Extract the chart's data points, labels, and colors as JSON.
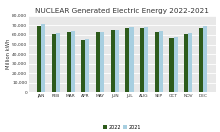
{
  "title": "NUCLEAR Generated Electric Energy 2022-2021",
  "months": [
    "JAN",
    "FEB",
    "MAR",
    "APR",
    "MAY",
    "JUN",
    "JUL",
    "AUG",
    "SEP",
    "OCT",
    "NOV",
    "DEC"
  ],
  "values_2022": [
    69000,
    61000,
    63000,
    55000,
    63000,
    65000,
    67000,
    67000,
    63000,
    57000,
    61000,
    67000
  ],
  "values_2021": [
    71000,
    62000,
    64000,
    56000,
    63000,
    65500,
    68000,
    68000,
    64000,
    58000,
    62000,
    69000
  ],
  "color_2022": "#2d5a1b",
  "color_2021": "#a8cfe0",
  "ylabel": "Million kWh",
  "ylim": [
    0,
    80000
  ],
  "yticks": [
    0,
    10000,
    20000,
    30000,
    40000,
    50000,
    60000,
    70000,
    80000
  ],
  "legend_labels": [
    "2022",
    "2021"
  ],
  "plot_bg_color": "#e8e8e8",
  "fig_bg_color": "#ffffff",
  "title_fontsize": 5.2,
  "ylabel_fontsize": 3.8,
  "tick_fontsize": 3.2,
  "legend_fontsize": 3.5,
  "bar_width": 0.28
}
